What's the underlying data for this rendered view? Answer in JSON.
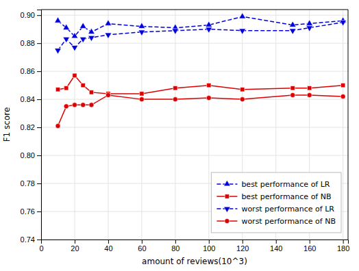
{
  "chart_data": {
    "type": "line",
    "x": [
      10,
      15,
      20,
      25,
      30,
      40,
      60,
      80,
      100,
      120,
      150,
      160,
      180
    ],
    "series": [
      {
        "name": "best performance of LR",
        "color": "#0000dd",
        "marker": "triangle-up",
        "line_style": "dashed",
        "values": [
          0.896,
          0.891,
          0.885,
          0.892,
          0.888,
          0.894,
          0.892,
          0.891,
          0.893,
          0.899,
          0.893,
          0.894,
          0.896
        ]
      },
      {
        "name": "best performance of NB",
        "color": "#dd0000",
        "marker": "square",
        "line_style": "solid",
        "values": [
          0.847,
          0.848,
          0.857,
          0.85,
          0.845,
          0.844,
          0.844,
          0.848,
          0.85,
          0.847,
          0.848,
          0.848,
          0.85
        ]
      },
      {
        "name": "worst performance of LR",
        "color": "#0000dd",
        "marker": "triangle-down",
        "line_style": "dashed",
        "values": [
          0.875,
          0.883,
          0.877,
          0.883,
          0.884,
          0.886,
          0.888,
          0.889,
          0.89,
          0.889,
          0.889,
          0.891,
          0.895
        ]
      },
      {
        "name": "worst performance of NB",
        "color": "#dd0000",
        "marker": "circle",
        "line_style": "solid",
        "values": [
          0.821,
          0.835,
          0.836,
          0.836,
          0.836,
          0.843,
          0.84,
          0.84,
          0.841,
          0.84,
          0.843,
          0.843,
          0.842
        ]
      }
    ],
    "xlim": [
      0,
      183
    ],
    "ylim": [
      0.74,
      0.904
    ],
    "xticks": [
      0,
      20,
      40,
      60,
      80,
      100,
      120,
      140,
      160,
      180
    ],
    "yticks": [
      0.74,
      0.76,
      0.78,
      {
        "value": 0.8,
        "label": "0.80"
      },
      0.82,
      0.84,
      0.86,
      0.88,
      {
        "value": 0.9,
        "label": "0.90"
      }
    ],
    "xlabel": "amount of reviews(10^3)",
    "ylabel": "F1 score",
    "grid": true,
    "legend": "lower right"
  }
}
